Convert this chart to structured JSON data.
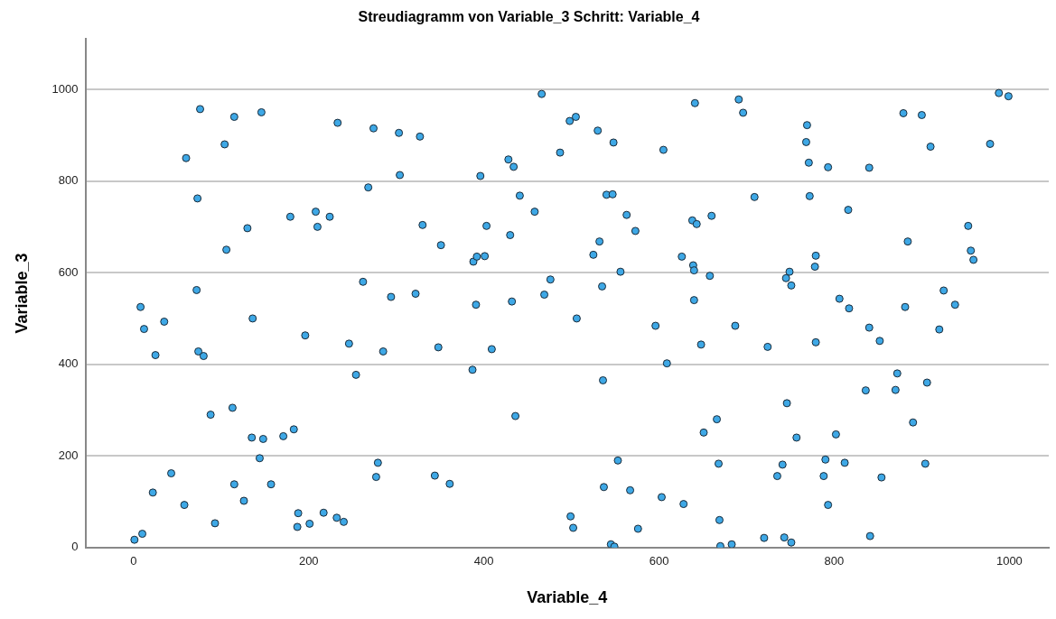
{
  "chart_data": {
    "type": "scatter",
    "title": "Streudiagramm von Variable_3 Schritt: Variable_4",
    "xlabel": "Variable_4",
    "ylabel": "Variable_3",
    "xlim": [
      -55,
      1045
    ],
    "xticks": [
      0,
      200,
      400,
      600,
      800,
      1000
    ],
    "ylim": [
      0,
      1110
    ],
    "yticks": [
      0,
      200,
      400,
      600,
      800,
      1000
    ],
    "grid": "y",
    "marker": "circle",
    "series": [
      {
        "color": "#3ea8e6",
        "x": [
          1,
          8,
          10,
          12,
          22,
          25,
          35,
          43,
          58,
          60,
          72,
          73,
          74,
          76,
          80,
          88,
          93,
          104,
          106,
          113,
          115,
          115,
          126,
          130,
          135,
          136,
          144,
          146,
          148,
          157,
          171,
          179,
          183,
          187,
          188,
          196,
          201,
          208,
          210,
          217,
          224,
          232,
          233,
          240,
          246,
          254,
          262,
          268,
          274,
          277,
          279,
          285,
          294,
          303,
          304,
          322,
          327,
          330,
          344,
          348,
          351,
          361,
          387,
          388,
          391,
          392,
          396,
          401,
          403,
          409,
          428,
          430,
          432,
          434,
          436,
          441,
          458,
          466,
          469,
          476,
          487,
          498,
          499,
          502,
          505,
          506,
          525,
          530,
          532,
          535,
          536,
          537,
          540,
          545,
          547,
          548,
          549,
          553,
          556,
          563,
          567,
          573,
          576,
          596,
          603,
          605,
          609,
          626,
          628,
          638,
          639,
          640,
          640,
          641,
          643,
          648,
          651,
          658,
          660,
          666,
          668,
          669,
          670,
          683,
          687,
          691,
          696,
          709,
          720,
          724,
          735,
          741,
          743,
          745,
          746,
          749,
          751,
          751,
          757,
          768,
          769,
          771,
          772,
          778,
          779,
          779,
          788,
          790,
          793,
          793,
          802,
          806,
          812,
          816,
          817,
          836,
          840,
          840,
          841,
          852,
          854,
          870,
          872,
          879,
          881,
          884,
          890,
          900,
          904,
          906,
          910,
          920,
          925,
          938,
          953,
          956,
          959,
          978,
          988,
          999
        ],
        "values": [
          17,
          525,
          30,
          477,
          120,
          420,
          493,
          162,
          93,
          850,
          562,
          762,
          428,
          957,
          418,
          290,
          53,
          880,
          650,
          305,
          940,
          138,
          102,
          697,
          240,
          500,
          195,
          950,
          237,
          138,
          243,
          722,
          258,
          45,
          75,
          463,
          52,
          733,
          700,
          76,
          722,
          65,
          927,
          56,
          445,
          377,
          580,
          786,
          915,
          154,
          185,
          428,
          547,
          905,
          813,
          554,
          897,
          704,
          157,
          437,
          660,
          139,
          388,
          624,
          530,
          635,
          811,
          636,
          702,
          433,
          847,
          682,
          537,
          831,
          287,
          768,
          733,
          990,
          552,
          585,
          862,
          931,
          68,
          43,
          940,
          500,
          639,
          910,
          668,
          570,
          365,
          132,
          770,
          7,
          771,
          884,
          2,
          190,
          602,
          726,
          125,
          691,
          41,
          484,
          110,
          868,
          402,
          635,
          95,
          714,
          616,
          540,
          605,
          970,
          706,
          443,
          251,
          593,
          724,
          280,
          183,
          60,
          3,
          7,
          484,
          978,
          949,
          765,
          21,
          438,
          156,
          181,
          22,
          588,
          315,
          602,
          572,
          11,
          240,
          885,
          922,
          840,
          767,
          613,
          637,
          448,
          156,
          192,
          93,
          830,
          247,
          543,
          185,
          737,
          522,
          343,
          829,
          480,
          25,
          451,
          153,
          344,
          380,
          948,
          525,
          668,
          273,
          944,
          183,
          360,
          875,
          476,
          561,
          530,
          702,
          648,
          628,
          881,
          992,
          985
        ]
      }
    ]
  }
}
